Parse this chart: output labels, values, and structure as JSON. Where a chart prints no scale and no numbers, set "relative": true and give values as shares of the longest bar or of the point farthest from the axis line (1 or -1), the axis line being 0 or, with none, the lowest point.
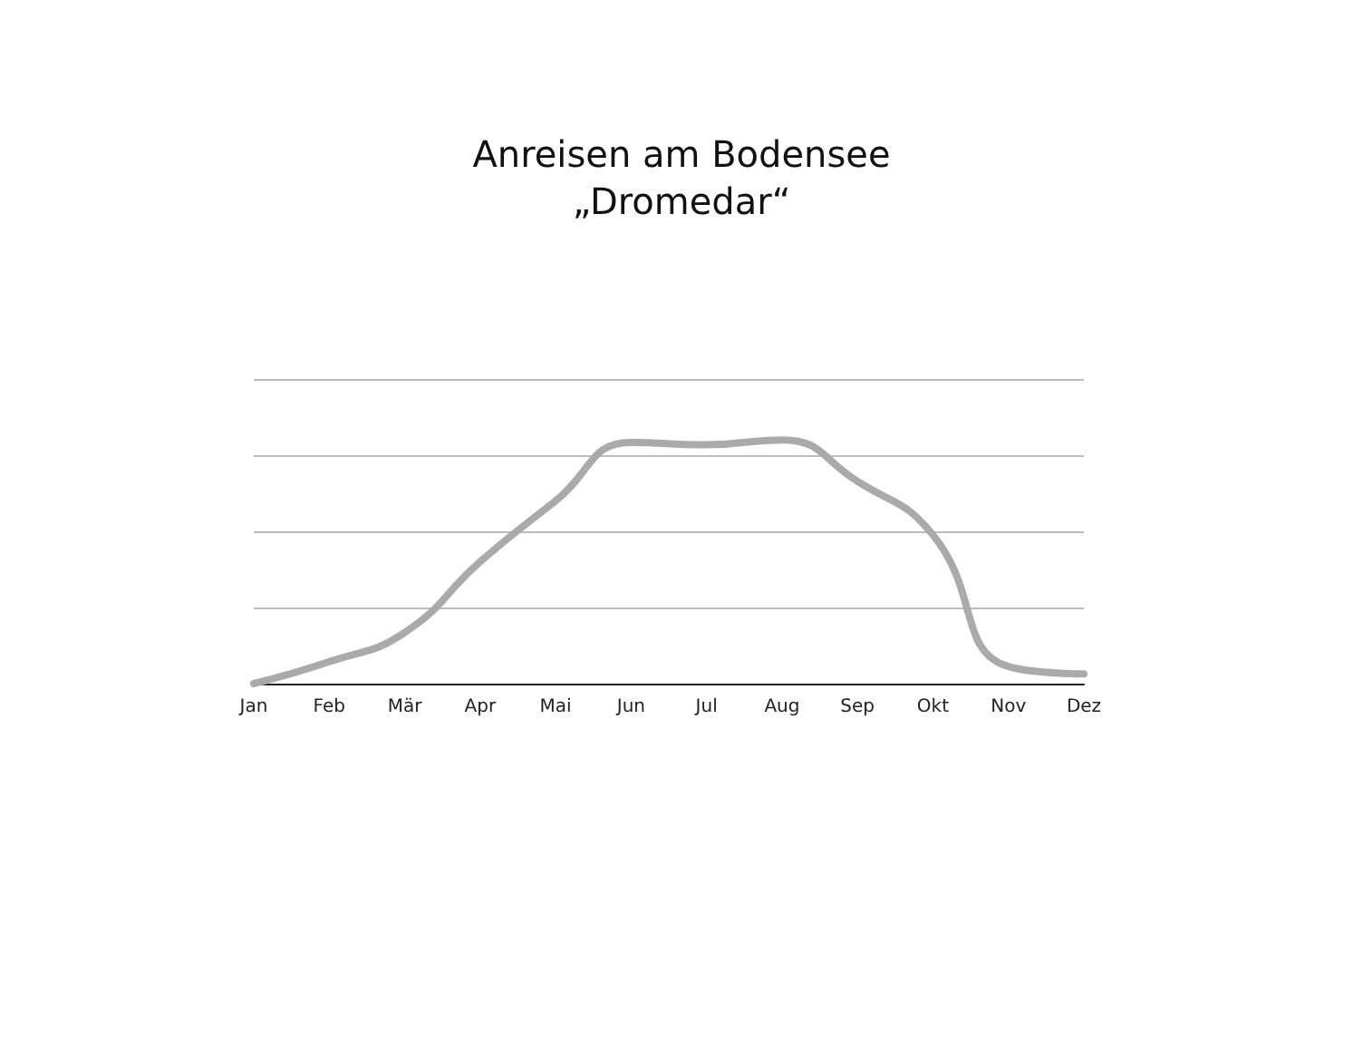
{
  "chart_data": {
    "type": "line",
    "title": "Anreisen am Bodensee",
    "subtitle": "„Dromedar“",
    "categories": [
      "Jan",
      "Feb",
      "Mär",
      "Apr",
      "Mai",
      "Jun",
      "Jul",
      "Aug",
      "Sep",
      "Okt",
      "Nov",
      "Dez"
    ],
    "series": [
      {
        "color": "#aaaaaa",
        "values": [
          0,
          0.09,
          0.21,
          0.5,
          0.75,
          0.99,
          0.98,
          1,
          0.83,
          0.61,
          0.07,
          0.04
        ]
      }
    ],
    "relative": true,
    "grid": "y",
    "marker": "none",
    "line_style": "solid"
  }
}
